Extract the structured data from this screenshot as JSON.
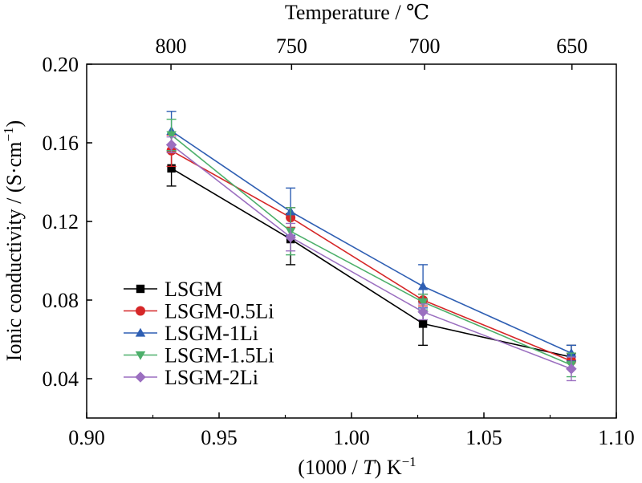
{
  "chart_data": {
    "type": "line",
    "x_axis": {
      "title_prefix": "(1000 / ",
      "title_var": "T",
      "title_suffix": ") K",
      "title_sup": "−1",
      "range": [
        0.9,
        1.1
      ],
      "ticks": [
        0.9,
        0.95,
        1.0,
        1.05,
        1.1
      ],
      "tick_labels": [
        "0.90",
        "0.95",
        "1.00",
        "1.05",
        "1.10"
      ]
    },
    "top_axis": {
      "title": "Temperature / ℃",
      "tick_labels": [
        "800",
        "750",
        "700",
        "650"
      ],
      "temperatures_c": [
        800,
        750,
        700,
        650
      ]
    },
    "y_axis": {
      "title_main": "Ionic conductivity / (S·cm",
      "title_sup": "−1",
      "title_end": ")",
      "range": [
        0.02,
        0.2
      ],
      "ticks": [
        0.04,
        0.08,
        0.12,
        0.16,
        0.2
      ],
      "tick_labels": [
        "0.04",
        "0.08",
        "0.12",
        "0.16",
        "0.20"
      ]
    },
    "x": [
      0.932,
      0.977,
      1.027,
      1.083
    ],
    "series": [
      {
        "name": "LSGM",
        "color": "#000000",
        "marker": "square",
        "values": [
          0.147,
          0.111,
          0.068,
          0.051
        ],
        "errors": [
          0.009,
          0.013,
          0.011,
          0.006
        ]
      },
      {
        "name": "LSGM-0.5Li",
        "color": "#d62728",
        "marker": "circle",
        "values": [
          0.156,
          0.122,
          0.08,
          0.049
        ],
        "errors": [
          0.008,
          0.005,
          0.003,
          0.004
        ]
      },
      {
        "name": "LSGM-1Li",
        "color": "#2f5fb3",
        "marker": "triangle-up",
        "values": [
          0.166,
          0.125,
          0.087,
          0.053
        ],
        "errors": [
          0.01,
          0.012,
          0.011,
          0.004
        ]
      },
      {
        "name": "LSGM-1.5Li",
        "color": "#4caf6a",
        "marker": "triangle-down",
        "values": [
          0.164,
          0.115,
          0.079,
          0.047
        ],
        "errors": [
          0.008,
          0.012,
          0.004,
          0.006
        ]
      },
      {
        "name": "LSGM-2Li",
        "color": "#9b6fc0",
        "marker": "diamond",
        "values": [
          0.159,
          0.112,
          0.074,
          0.045
        ],
        "errors": [
          0.004,
          0.007,
          0.004,
          0.006
        ]
      }
    ],
    "legend": {
      "position": "bottom-left"
    },
    "grid": false
  }
}
